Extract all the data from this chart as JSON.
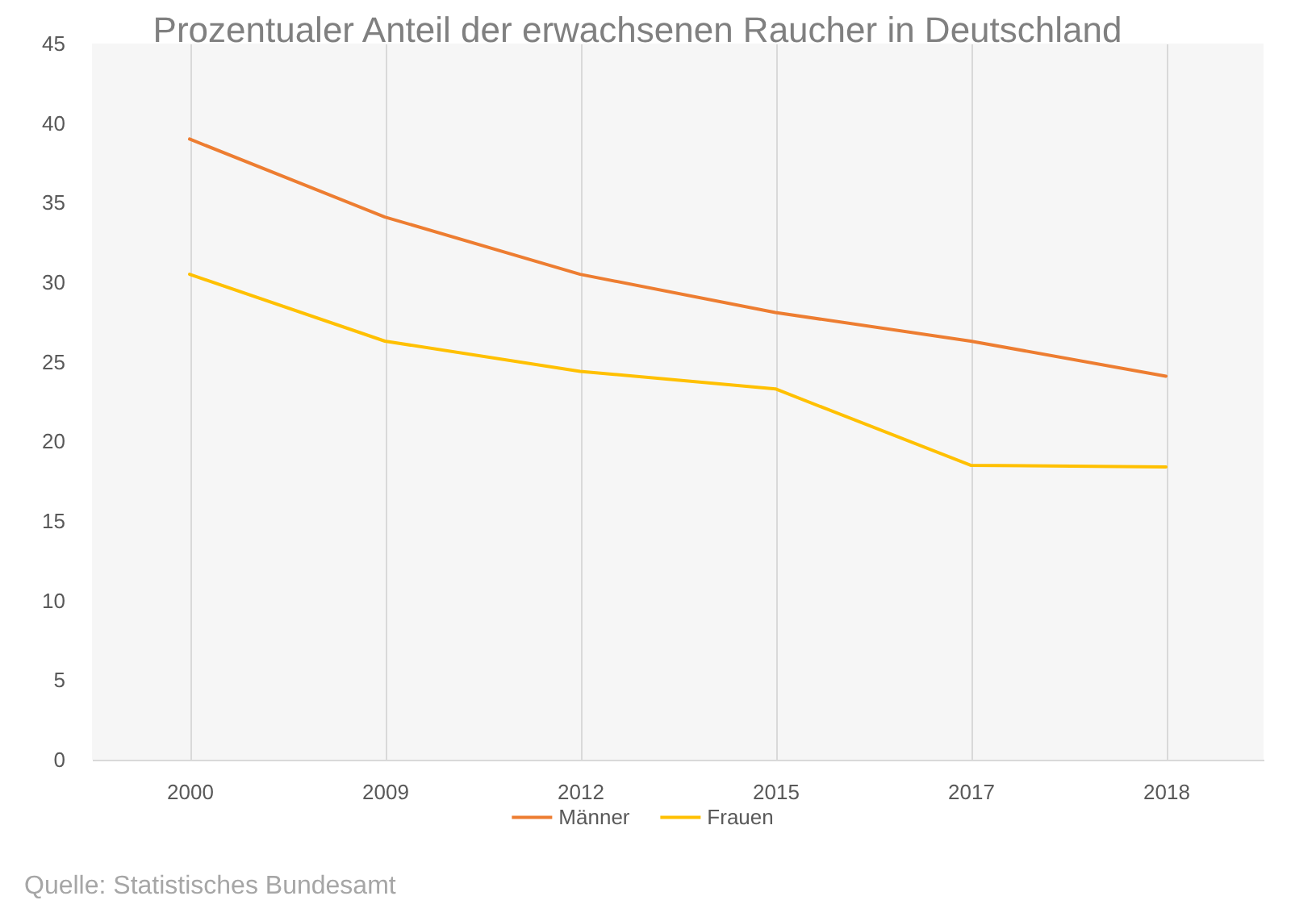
{
  "chart_data": {
    "type": "line",
    "title": "Prozentualer Anteil der erwachsenen Raucher in Deutschland",
    "categories": [
      "2000",
      "2009",
      "2012",
      "2015",
      "2017",
      "2018"
    ],
    "series": [
      {
        "name": "Männer",
        "color": "#ed7d31",
        "values": [
          39.0,
          34.1,
          30.5,
          28.1,
          26.3,
          24.1
        ]
      },
      {
        "name": "Frauen",
        "color": "#ffc000",
        "values": [
          30.5,
          26.3,
          24.4,
          23.3,
          18.5,
          18.4
        ]
      }
    ],
    "ylim": [
      0,
      45
    ],
    "yticks": [
      0,
      5,
      10,
      15,
      20,
      25,
      30,
      35,
      40,
      45
    ],
    "grid": "x",
    "legend": "bottom",
    "line_style": "solid",
    "annotations": [
      "Quelle: Statistisches Bundesamt"
    ]
  }
}
